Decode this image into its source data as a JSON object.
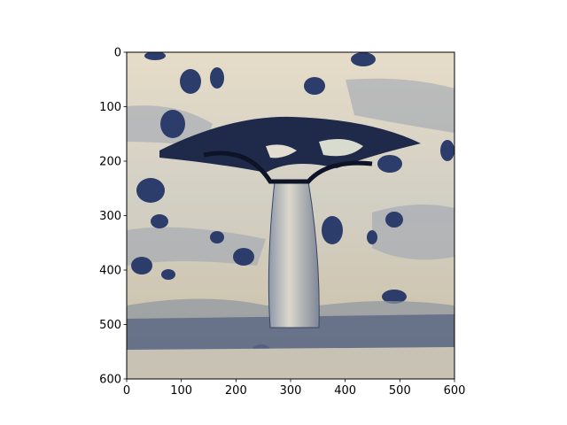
{
  "chart_data": {
    "type": "image",
    "xlim": [
      0,
      600
    ],
    "ylim": [
      600,
      0
    ],
    "xticks": [
      0,
      100,
      200,
      300,
      400,
      500,
      600
    ],
    "yticks": [
      0,
      100,
      200,
      300,
      400,
      500,
      600
    ]
  }
}
